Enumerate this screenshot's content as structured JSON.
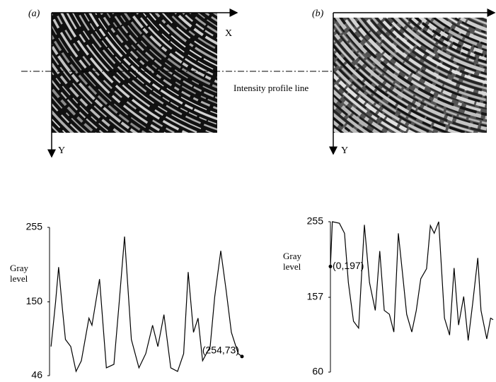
{
  "figure": {
    "panel_a": {
      "label": "(a)",
      "x_axis": "X",
      "y_axis": "Y"
    },
    "panel_b": {
      "label": "(b)",
      "y_axis": "Y"
    },
    "profile_note": "Intensity profile line"
  },
  "chart_data": [
    {
      "type": "line",
      "y_label": "Gray level",
      "color": "#000000",
      "xlim": [
        0,
        254
      ],
      "ylim": [
        46,
        255
      ],
      "yticks": [
        46,
        150,
        255
      ],
      "annotation": "(254,73)",
      "x": [
        2,
        8,
        12,
        17,
        21,
        28,
        35,
        42,
        52,
        56,
        66,
        75,
        85,
        92,
        99,
        108,
        118,
        127,
        136,
        143,
        151,
        160,
        169,
        177,
        183,
        190,
        196,
        202,
        212,
        218,
        226,
        233,
        240,
        249,
        254
      ],
      "values": [
        87,
        150,
        199,
        140,
        97,
        87,
        52,
        67,
        127,
        117,
        182,
        57,
        62,
        150,
        242,
        97,
        57,
        77,
        117,
        87,
        132,
        57,
        52,
        77,
        192,
        107,
        127,
        67,
        87,
        157,
        222,
        167,
        107,
        77,
        73
      ]
    },
    {
      "type": "line",
      "y_label": "Gray level",
      "color": "#000000",
      "xlim": [
        0,
        254
      ],
      "ylim": [
        60,
        255
      ],
      "yticks": [
        60,
        157,
        255
      ],
      "annotation": "(0,197)",
      "x": [
        0,
        3,
        14,
        22,
        28,
        36,
        44,
        53,
        61,
        70,
        77,
        84,
        92,
        99,
        106,
        114,
        119,
        127,
        134,
        141,
        150,
        156,
        162,
        169,
        178,
        186,
        193,
        200,
        208,
        215,
        222,
        230,
        235,
        244,
        250,
        254
      ],
      "values": [
        197,
        255,
        253,
        240,
        176,
        126,
        117,
        251,
        176,
        140,
        217,
        140,
        135,
        112,
        240,
        176,
        135,
        112,
        140,
        181,
        194,
        250,
        240,
        255,
        130,
        108,
        195,
        121,
        158,
        101,
        149,
        208,
        140,
        103,
        130,
        128
      ]
    }
  ]
}
